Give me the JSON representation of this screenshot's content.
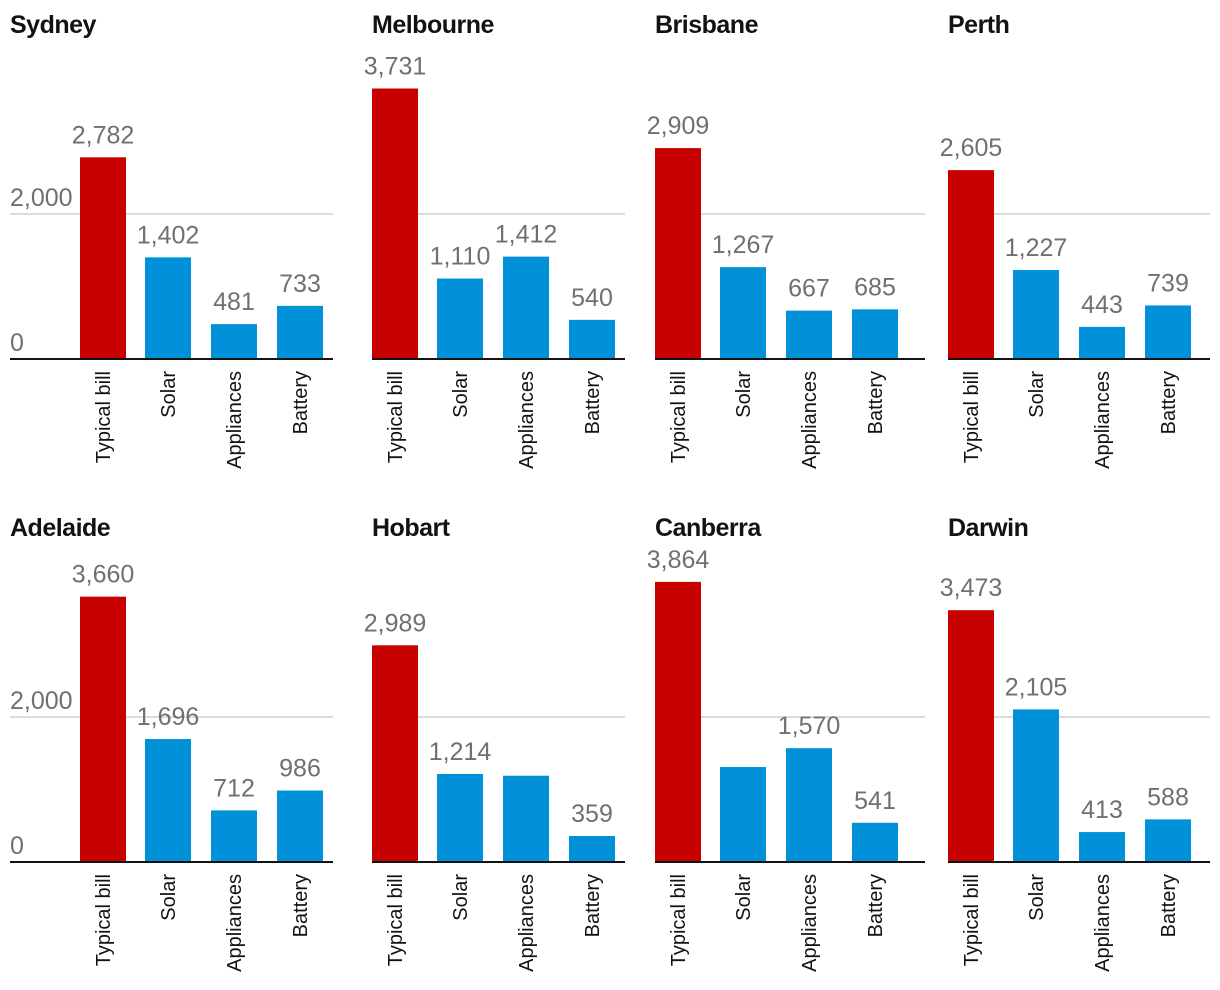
{
  "colors": {
    "bill": "#c70000",
    "saving": "#0091d9",
    "grid": "#bababa",
    "baseline": "#121212"
  },
  "chart_data": [
    {
      "type": "bar",
      "title": "Sydney",
      "categories": [
        "Typical bill",
        "Solar",
        "Appliances",
        "Battery"
      ],
      "values": [
        2782,
        1402,
        481,
        733
      ],
      "value_labels": [
        "2,782",
        "1,402",
        "481",
        "733"
      ],
      "ytick_labels": [
        "2,000",
        "0"
      ],
      "yticks": [
        2000,
        0
      ],
      "ylim": [
        0,
        4000
      ]
    },
    {
      "type": "bar",
      "title": "Melbourne",
      "categories": [
        "Typical bill",
        "Solar",
        "Appliances",
        "Battery"
      ],
      "values": [
        3731,
        1110,
        1412,
        540
      ],
      "value_labels": [
        "3,731",
        "1,110",
        "1,412",
        "540"
      ],
      "ytick_labels": [],
      "yticks": [
        2000,
        0
      ],
      "ylim": [
        0,
        4000
      ]
    },
    {
      "type": "bar",
      "title": "Brisbane",
      "categories": [
        "Typical bill",
        "Solar",
        "Appliances",
        "Battery"
      ],
      "values": [
        2909,
        1267,
        667,
        685
      ],
      "value_labels": [
        "2,909",
        "1,267",
        "667",
        "685"
      ],
      "ytick_labels": [],
      "yticks": [
        2000,
        0
      ],
      "ylim": [
        0,
        4000
      ]
    },
    {
      "type": "bar",
      "title": "Perth",
      "categories": [
        "Typical bill",
        "Solar",
        "Appliances",
        "Battery"
      ],
      "values": [
        2605,
        1227,
        443,
        739
      ],
      "value_labels": [
        "2,605",
        "1,227",
        "443",
        "739"
      ],
      "ytick_labels": [],
      "yticks": [
        2000,
        0
      ],
      "ylim": [
        0,
        4000
      ]
    },
    {
      "type": "bar",
      "title": "Adelaide",
      "categories": [
        "Typical bill",
        "Solar",
        "Appliances",
        "Battery"
      ],
      "values": [
        3660,
        1696,
        712,
        986
      ],
      "value_labels": [
        "3,660",
        "1,696",
        "712",
        "986"
      ],
      "ytick_labels": [
        "2,000",
        "0"
      ],
      "yticks": [
        2000,
        0
      ],
      "ylim": [
        0,
        4000
      ]
    },
    {
      "type": "bar",
      "title": "Hobart",
      "categories": [
        "Typical bill",
        "Solar",
        "Appliances",
        "Battery"
      ],
      "values": [
        2989,
        1214,
        1190,
        359
      ],
      "value_labels": [
        "2,989",
        "1,214",
        "",
        "359"
      ],
      "ytick_labels": [],
      "yticks": [
        2000,
        0
      ],
      "ylim": [
        0,
        4000
      ]
    },
    {
      "type": "bar",
      "title": "Canberra",
      "categories": [
        "Typical bill",
        "Solar",
        "Appliances",
        "Battery"
      ],
      "values": [
        3864,
        1310,
        1570,
        541
      ],
      "value_labels": [
        "3,864",
        "",
        "1,570",
        "541"
      ],
      "ytick_labels": [],
      "yticks": [
        2000,
        0
      ],
      "ylim": [
        0,
        4000
      ]
    },
    {
      "type": "bar",
      "title": "Darwin",
      "categories": [
        "Typical bill",
        "Solar",
        "Appliances",
        "Battery"
      ],
      "values": [
        3473,
        2105,
        413,
        588
      ],
      "value_labels": [
        "3,473",
        "2,105",
        "413",
        "588"
      ],
      "ytick_labels": [],
      "yticks": [
        2000,
        0
      ],
      "ylim": [
        0,
        4000
      ]
    }
  ]
}
